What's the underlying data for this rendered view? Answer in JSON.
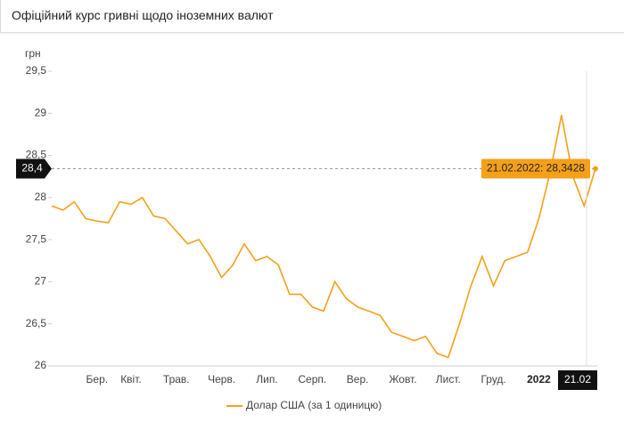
{
  "header": {
    "title": "Офіційний курс гривні щодо іноземних валют"
  },
  "chart_data": {
    "type": "line",
    "y_label": "грн",
    "categories": [
      null,
      null,
      null,
      null,
      "Бер.",
      null,
      null,
      "Квіт.",
      null,
      null,
      null,
      "Трав.",
      null,
      null,
      null,
      "Черв.",
      null,
      null,
      null,
      "Лип.",
      null,
      null,
      null,
      "Серп.",
      null,
      null,
      null,
      "Вер.",
      null,
      null,
      null,
      "Жовт.",
      null,
      null,
      null,
      "Лист.",
      null,
      null,
      null,
      "Груд.",
      null,
      null,
      null,
      "2022",
      null,
      null,
      null,
      null,
      null
    ],
    "series": [
      {
        "name": "Долар США (за 1 одиницю)",
        "color": "#f5a01a",
        "values": [
          27.9,
          27.85,
          27.95,
          27.75,
          27.72,
          27.7,
          27.95,
          27.92,
          28.0,
          27.78,
          27.75,
          27.6,
          27.45,
          27.5,
          27.3,
          27.05,
          27.2,
          27.45,
          27.25,
          27.3,
          27.2,
          26.85,
          26.85,
          26.7,
          26.65,
          27.0,
          26.8,
          26.7,
          26.65,
          26.6,
          26.4,
          26.35,
          26.3,
          26.35,
          26.15,
          26.1,
          26.5,
          26.95,
          27.3,
          26.95,
          27.25,
          27.3,
          27.35,
          27.75,
          28.3,
          28.98,
          28.25,
          27.9,
          28.3428
        ]
      }
    ],
    "ylim": [
      26,
      29.5
    ],
    "yticks": [
      26,
      {
        "value": 26.5,
        "label": "26,5"
      },
      27,
      {
        "value": 27.5,
        "label": "27,5"
      },
      28,
      {
        "value": 28.5,
        "label": "28,5"
      },
      29,
      {
        "value": 29.5,
        "label": "29,5"
      }
    ],
    "grid": false,
    "crosshair_y_label": "28,4",
    "crosshair_x_label": "21.02",
    "tooltip": "21.02.2022: 28,3428"
  }
}
